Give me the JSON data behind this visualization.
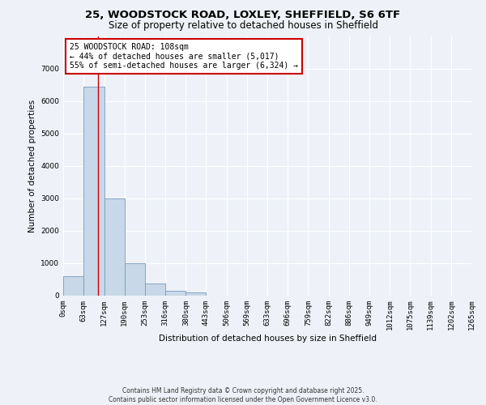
{
  "title_line1": "25, WOODSTOCK ROAD, LOXLEY, SHEFFIELD, S6 6TF",
  "title_line2": "Size of property relative to detached houses in Sheffield",
  "xlabel": "Distribution of detached houses by size in Sheffield",
  "ylabel": "Number of detached properties",
  "bar_values": [
    600,
    6450,
    3000,
    1000,
    380,
    160,
    100,
    0,
    0,
    0,
    0,
    0,
    0,
    0,
    0,
    0,
    0,
    0,
    0,
    0
  ],
  "bin_edges": [
    0,
    63,
    127,
    190,
    253,
    316,
    380,
    443,
    506,
    569,
    633,
    696,
    759,
    822,
    886,
    949,
    1012,
    1075,
    1139,
    1202,
    1265
  ],
  "x_labels": [
    "0sqm",
    "63sqm",
    "127sqm",
    "190sqm",
    "253sqm",
    "316sqm",
    "380sqm",
    "443sqm",
    "506sqm",
    "569sqm",
    "633sqm",
    "696sqm",
    "759sqm",
    "822sqm",
    "886sqm",
    "949sqm",
    "1012sqm",
    "1075sqm",
    "1139sqm",
    "1202sqm",
    "1265sqm"
  ],
  "bar_color": "#c8d8e8",
  "bar_edge_color": "#7799bb",
  "vline_x": 108,
  "vline_color": "#cc0000",
  "ylim": [
    0,
    8000
  ],
  "yticks": [
    0,
    1000,
    2000,
    3000,
    4000,
    5000,
    6000,
    7000
  ],
  "annotation_text": "25 WOODSTOCK ROAD: 108sqm\n← 44% of detached houses are smaller (5,017)\n55% of semi-detached houses are larger (6,324) →",
  "annotation_box_color": "#cc0000",
  "footer_line1": "Contains HM Land Registry data © Crown copyright and database right 2025.",
  "footer_line2": "Contains public sector information licensed under the Open Government Licence v3.0.",
  "bg_color": "#eef2f8",
  "plot_bg_color": "#eef2f8",
  "grid_color": "#ffffff",
  "title_fontsize": 9.5,
  "subtitle_fontsize": 8.5,
  "ylabel_fontsize": 7.5,
  "xlabel_fontsize": 7.5,
  "tick_fontsize": 6.5,
  "annotation_fontsize": 7,
  "footer_fontsize": 5.5
}
